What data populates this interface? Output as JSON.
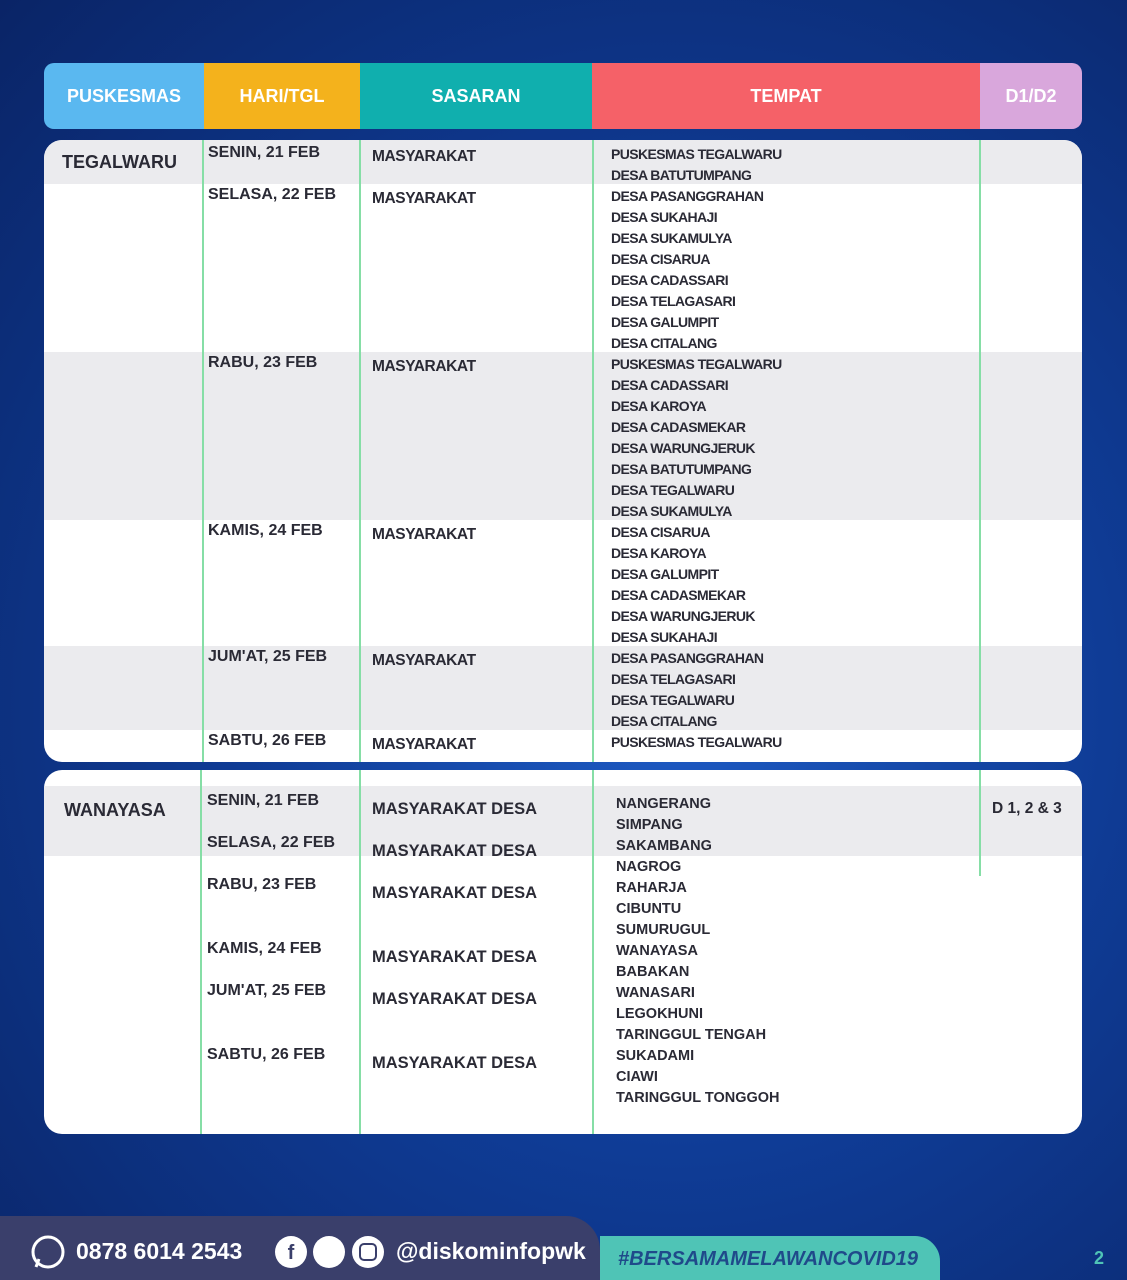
{
  "header": {
    "columns": [
      "PUSKESMAS",
      "HARI/TGL",
      "SASARAN",
      "TEMPAT",
      "D1/D2"
    ]
  },
  "sections": [
    {
      "puskesmas": "TEGALWARU",
      "rows": [
        {
          "day": "SENIN, 21 FEB",
          "target": "MASYARAKAT",
          "places": [
            "PUSKESMAS TEGALWARU",
            "DESA BATUTUMPANG"
          ]
        },
        {
          "day": "SELASA, 22 FEB",
          "target": "MASYARAKAT",
          "places": [
            "DESA PASANGGRAHAN",
            "DESA SUKAHAJI",
            "DESA SUKAMULYA",
            "DESA CISARUA",
            "DESA CADASSARI",
            "DESA TELAGASARI",
            "DESA GALUMPIT",
            "DESA CITALANG"
          ]
        },
        {
          "day": "RABU, 23 FEB",
          "target": "MASYARAKAT",
          "places": [
            "PUSKESMAS TEGALWARU",
            "DESA CADASSARI",
            "DESA KAROYA",
            "DESA CADASMEKAR",
            "DESA WARUNGJERUK",
            "DESA BATUTUMPANG",
            "DESA TEGALWARU",
            "DESA SUKAMULYA"
          ]
        },
        {
          "day": "KAMIS, 24 FEB",
          "target": "MASYARAKAT",
          "places": [
            "DESA CISARUA",
            "DESA KAROYA",
            "DESA GALUMPIT",
            "DESA CADASMEKAR",
            "DESA WARUNGJERUK",
            "DESA SUKAHAJI"
          ]
        },
        {
          "day": "JUM'AT, 25 FEB",
          "target": "MASYARAKAT",
          "places": [
            "DESA PASANGGRAHAN",
            "DESA TELAGASARI",
            "DESA TEGALWARU",
            "DESA CITALANG"
          ]
        },
        {
          "day": "SABTU, 26 FEB",
          "target": "MASYARAKAT",
          "places": [
            "PUSKESMAS TEGALWARU"
          ]
        }
      ]
    },
    {
      "puskesmas": "WANAYASA",
      "days": [
        "SENIN, 21 FEB",
        "SELASA, 22 FEB",
        "RABU, 23 FEB",
        "KAMIS, 24 FEB",
        "JUM'AT, 25 FEB",
        "SABTU, 26 FEB"
      ],
      "targets": [
        "MASYARAKAT DESA",
        "MASYARAKAT DESA",
        "MASYARAKAT DESA",
        "MASYARAKAT DESA",
        "MASYARAKAT DESA",
        "MASYARAKAT DESA"
      ],
      "places": [
        "NANGERANG",
        "SIMPANG",
        "SAKAMBANG",
        "NAGROG",
        "RAHARJA",
        "CIBUNTU",
        "SUMURUGUL",
        "WANAYASA",
        "BABAKAN",
        "WANASARI",
        "LEGOKHUNI",
        "TARINGGUL TENGAH",
        "SUKADAMI",
        "CIAWI",
        "TARINGGUL TONGGOH"
      ],
      "dose": "D 1, 2 & 3"
    }
  ],
  "footer": {
    "phone": "0878 6014 2543",
    "handle": "@diskominfopwk",
    "hashtag": "#BERSAMAMELAWANCOVID19",
    "page": "2"
  }
}
